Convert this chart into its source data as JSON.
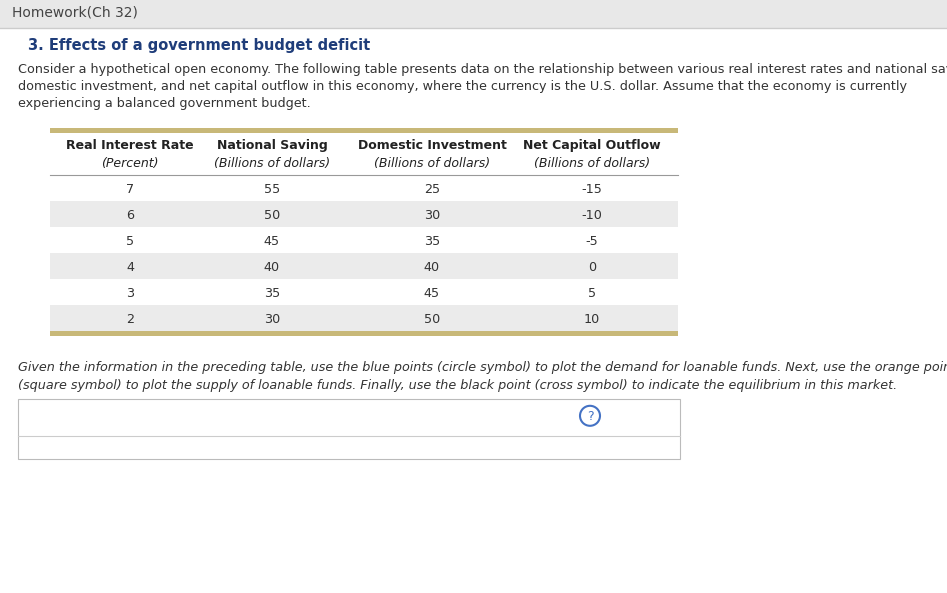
{
  "page_title": "Homework(Ch 32)",
  "section_title": "3. Effects of a government budget deficit",
  "body_text_1": "Consider a hypothetical open economy. The following table presents data on the relationship between various real interest rates and national saving,",
  "body_text_2": "domestic investment, and net capital outflow in this economy, where the currency is the U.S. dollar. Assume that the economy is currently",
  "body_text_3": "experiencing a balanced government budget.",
  "table_col1_header": "Real Interest Rate",
  "table_col2_header": "National Saving",
  "table_col3_header": "Domestic Investment",
  "table_col4_header": "Net Capital Outflow",
  "table_col_sub": "(Percent)",
  "table_col_sub2": "(Billions of dollars)",
  "table_data": [
    [
      "7",
      "55",
      "25",
      "-15"
    ],
    [
      "6",
      "50",
      "30",
      "-10"
    ],
    [
      "5",
      "45",
      "35",
      "-5"
    ],
    [
      "4",
      "40",
      "40",
      "0"
    ],
    [
      "3",
      "35",
      "45",
      "5"
    ],
    [
      "2",
      "30",
      "50",
      "10"
    ]
  ],
  "instruction_text_1": "Given the information in the preceding table, use the blue points (circle symbol) to plot the demand for loanable funds. Next, use the orange points",
  "instruction_text_2": "(square symbol) to plot the supply of loanable funds. Finally, use the black point (cross symbol) to indicate the equilibrium in this market.",
  "bg_color": "#e8e8e8",
  "header_bar_color": "#e8e8e8",
  "content_bg": "#ffffff",
  "table_row_even_color": "#ebebeb",
  "table_row_odd_color": "#ffffff",
  "table_border_color": "#c8b878",
  "section_title_color": "#1f3d7a",
  "page_title_color": "#444444",
  "body_text_color": "#333333",
  "header_text_color": "#222222",
  "separator_color": "#cccccc",
  "qmark_color": "#4472c4",
  "box_border_color": "#bbbbbb"
}
